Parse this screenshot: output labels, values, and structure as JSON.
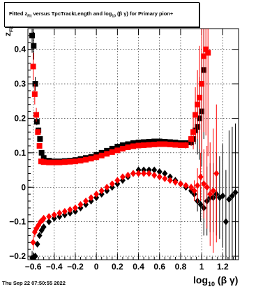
{
  "title": {
    "prefix": "Fitted  z",
    "sub": "Fit",
    "mid": "  versus TpcTrackLength and log",
    "sub2": "10",
    "suffix": " (β  γ) for Primary pion+"
  },
  "footer": {
    "date": "Thu Sep 22 07:50:55 2022"
  },
  "xlabel": {
    "main": "log",
    "sub": "10",
    "tail": " (β γ)"
  },
  "ylabel": {
    "main": "z",
    "sub": "Fit"
  },
  "colors": {
    "series_black": "#000000",
    "series_red": "#ff0000",
    "grid": "#000000"
  },
  "chart_data": {
    "type": "scatter",
    "xlim": [
      -0.65,
      1.35
    ],
    "ylim": [
      -0.21,
      0.46
    ],
    "xticks": [
      -0.6,
      -0.4,
      -0.2,
      0,
      0.2,
      0.4,
      0.6,
      0.8,
      1,
      1.2
    ],
    "xtick_labels": [
      "−0.6",
      "−0.4",
      "−0.2",
      "0",
      "0.2",
      "0.4",
      "0.6",
      "0.8",
      "1",
      "1.2"
    ],
    "yticks": [
      -0.2,
      -0.1,
      0,
      0.1,
      0.2,
      0.3,
      0.4
    ],
    "ytick_labels": [
      "−0.2",
      "−0.1",
      "0",
      "0.1",
      "0.2",
      "0.3",
      "0.4"
    ],
    "grid": true,
    "series": [
      {
        "color": "#000000",
        "marker": "square",
        "x": [
          -0.61,
          -0.595,
          -0.58,
          -0.565,
          -0.55,
          -0.535,
          -0.52,
          -0.5,
          -0.45,
          -0.4,
          -0.35,
          -0.3,
          -0.25,
          -0.2,
          -0.15,
          -0.1,
          -0.05,
          0,
          0.05,
          0.1,
          0.15,
          0.2,
          0.25,
          0.3,
          0.35,
          0.4,
          0.45,
          0.5,
          0.55,
          0.6,
          0.65,
          0.7,
          0.75,
          0.8,
          0.85,
          0.9,
          0.92,
          0.94,
          0.96,
          0.98,
          1.0,
          1.02
        ],
        "y": [
          0.44,
          0.41,
          0.3,
          0.19,
          0.165,
          0.14,
          0.1,
          0.085,
          0.077,
          0.075,
          0.075,
          0.076,
          0.077,
          0.079,
          0.082,
          0.085,
          0.088,
          0.094,
          0.1,
          0.106,
          0.112,
          0.118,
          0.122,
          0.125,
          0.128,
          0.13,
          0.131,
          0.132,
          0.133,
          0.133,
          0.132,
          0.131,
          0.13,
          0.128,
          0.128,
          0.13,
          0.14,
          0.165,
          0.175,
          0.2,
          0.22,
          0.34
        ],
        "yerr": [
          0.05,
          0.04,
          0.02,
          0.01,
          0.008,
          0.006,
          0.004,
          0.003,
          0,
          0,
          0,
          0,
          0,
          0,
          0,
          0,
          0,
          0,
          0,
          0,
          0,
          0,
          0,
          0,
          0,
          0,
          0,
          0,
          0,
          0,
          0,
          0,
          0,
          0,
          0,
          0.01,
          0.02,
          0.04,
          0.08,
          0.12,
          0.16,
          0.2
        ]
      },
      {
        "color": "#ff0000",
        "marker": "square",
        "x": [
          -0.6,
          -0.585,
          -0.57,
          -0.555,
          -0.54,
          -0.525,
          -0.5,
          -0.45,
          -0.4,
          -0.35,
          -0.3,
          -0.25,
          -0.2,
          -0.15,
          -0.1,
          -0.05,
          0,
          0.05,
          0.1,
          0.15,
          0.2,
          0.25,
          0.3,
          0.35,
          0.4,
          0.45,
          0.5,
          0.55,
          0.6,
          0.65,
          0.7,
          0.75,
          0.8,
          0.85,
          0.9,
          0.92,
          0.94,
          0.96,
          0.98,
          1.0,
          1.02,
          1.04,
          1.06
        ],
        "y": [
          0.35,
          0.27,
          0.21,
          0.16,
          0.12,
          0.075,
          0.073,
          0.072,
          0.072,
          0.072,
          0.073,
          0.074,
          0.075,
          0.077,
          0.08,
          0.083,
          0.087,
          0.092,
          0.097,
          0.102,
          0.107,
          0.112,
          0.116,
          0.119,
          0.121,
          0.122,
          0.123,
          0.124,
          0.125,
          0.125,
          0.124,
          0.123,
          0.122,
          0.122,
          0.14,
          0.16,
          0.21,
          0.24,
          0.26,
          0.3,
          0.38,
          0.4,
          0.39
        ],
        "yerr": [
          0.04,
          0.03,
          0.02,
          0.01,
          0.006,
          0.003,
          0,
          0,
          0,
          0,
          0,
          0,
          0,
          0,
          0,
          0,
          0,
          0,
          0,
          0,
          0,
          0,
          0,
          0,
          0,
          0,
          0,
          0,
          0,
          0,
          0,
          0,
          0,
          0.01,
          0.02,
          0.05,
          0.08,
          0.1,
          0.15,
          0.2,
          0.22,
          0.25,
          0.3
        ]
      },
      {
        "color": "#000000",
        "marker": "diamond",
        "x": [
          -0.61,
          -0.595,
          -0.58,
          -0.56,
          -0.54,
          -0.52,
          -0.5,
          -0.45,
          -0.4,
          -0.35,
          -0.3,
          -0.25,
          -0.2,
          -0.15,
          -0.1,
          -0.05,
          0,
          0.05,
          0.1,
          0.15,
          0.2,
          0.25,
          0.3,
          0.35,
          0.4,
          0.45,
          0.5,
          0.55,
          0.6,
          0.65,
          0.7,
          0.75,
          0.8,
          0.85,
          0.9,
          0.93,
          0.96,
          0.99,
          1.02,
          1.05,
          1.08,
          1.11,
          1.14,
          1.17,
          1.2,
          1.23,
          1.26,
          1.29,
          1.32
        ],
        "y": [
          -0.205,
          -0.21,
          -0.2,
          -0.165,
          -0.14,
          -0.125,
          -0.115,
          -0.1,
          -0.09,
          -0.085,
          -0.08,
          -0.075,
          -0.07,
          -0.06,
          -0.05,
          -0.04,
          -0.03,
          -0.02,
          -0.01,
          0,
          0.01,
          0.02,
          0.03,
          0.04,
          0.05,
          0.05,
          0.05,
          0.05,
          0.045,
          0.04,
          0.03,
          0.02,
          0.01,
          0,
          -0.01,
          -0.02,
          -0.04,
          -0.05,
          -0.06,
          -0.04,
          -0.03,
          -0.03,
          -0.02,
          -0.03,
          -0.025,
          -0.1,
          -0.035,
          -0.025,
          -0.015
        ],
        "yerr": [
          0.02,
          0.02,
          0.01,
          0.005,
          0.004,
          0.003,
          0,
          0,
          0,
          0,
          0,
          0,
          0,
          0,
          0,
          0,
          0,
          0,
          0,
          0,
          0,
          0,
          0,
          0,
          0,
          0,
          0,
          0,
          0,
          0,
          0,
          0,
          0,
          0,
          0.01,
          0.02,
          0.03,
          0.05,
          0.08,
          0.1,
          0.1,
          0.1,
          0.12,
          0.12,
          0.15,
          0.15,
          0.2,
          0.2,
          0.2
        ]
      },
      {
        "color": "#ff0000",
        "marker": "diamond",
        "x": [
          -0.6,
          -0.585,
          -0.57,
          -0.55,
          -0.53,
          -0.51,
          -0.5,
          -0.45,
          -0.4,
          -0.35,
          -0.3,
          -0.25,
          -0.2,
          -0.15,
          -0.1,
          -0.05,
          0,
          0.05,
          0.1,
          0.15,
          0.2,
          0.25,
          0.3,
          0.35,
          0.4,
          0.45,
          0.5,
          0.55,
          0.6,
          0.65,
          0.7,
          0.75,
          0.8,
          0.85,
          0.9,
          0.93,
          0.96,
          0.99,
          1.02,
          1.05,
          1.08,
          1.11,
          1.14
        ],
        "y": [
          -0.16,
          -0.13,
          -0.12,
          -0.11,
          -0.1,
          -0.095,
          -0.09,
          -0.085,
          -0.08,
          -0.075,
          -0.07,
          -0.065,
          -0.06,
          -0.05,
          -0.04,
          -0.03,
          -0.02,
          -0.01,
          0,
          0.01,
          0.02,
          0.03,
          0.035,
          0.04,
          0.04,
          0.04,
          0.04,
          0.035,
          0.03,
          0.025,
          0.02,
          0.015,
          0.01,
          0.005,
          0,
          -0.01,
          0.005,
          0.03,
          0.01,
          0.0,
          -0.02,
          -0.01,
          0.04
        ],
        "yerr": [
          0.02,
          0.015,
          0.01,
          0.005,
          0.003,
          0.002,
          0,
          0,
          0,
          0,
          0,
          0,
          0,
          0,
          0,
          0,
          0,
          0,
          0,
          0,
          0,
          0,
          0,
          0,
          0,
          0,
          0,
          0,
          0,
          0,
          0,
          0,
          0,
          0,
          0.01,
          0.03,
          0.05,
          0.07,
          0.1,
          0.12,
          0.15,
          0.18,
          0.2
        ]
      }
    ]
  }
}
